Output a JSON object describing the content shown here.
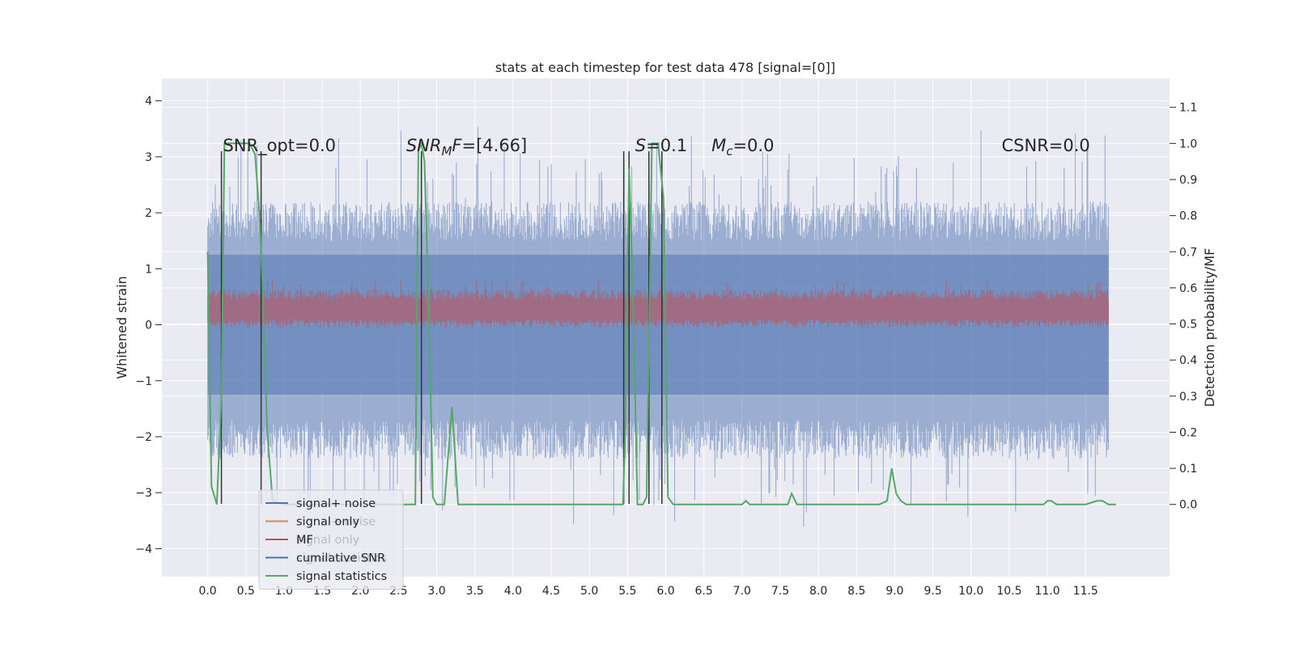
{
  "chart_data": {
    "type": "line",
    "title": "stats at each timestep for test data 478 [signal=[0]]",
    "ylabel_left": "Whitened strain",
    "ylabel_right": "Detection probability/MF",
    "xlim": [
      -0.6,
      12.6
    ],
    "ylim_left": [
      -4.5,
      4.4
    ],
    "ylim_right": [
      -0.2,
      1.18
    ],
    "xticks": [
      "0.0",
      "0.5",
      "1.0",
      "1.5",
      "2.0",
      "2.5",
      "3.0",
      "3.5",
      "4.0",
      "4.5",
      "5.0",
      "5.5",
      "6.0",
      "6.5",
      "7.0",
      "7.5",
      "8.0",
      "8.5",
      "9.0",
      "9.5",
      "10.0",
      "10.5",
      "11.0",
      "11.5"
    ],
    "yticks_left": [
      "−4",
      "−3",
      "−2",
      "−1",
      "0",
      "1",
      "2",
      "3",
      "4"
    ],
    "yticks_right": [
      "0.0",
      "0.1",
      "0.2",
      "0.3",
      "0.4",
      "0.5",
      "0.6",
      "0.7",
      "0.8",
      "0.9",
      "1.0",
      "1.1"
    ],
    "grid": true,
    "legend_placement": "lower-left",
    "background": "#eaeaf2",
    "colors": {
      "signal_noise": "#4c72b0",
      "signal_only": "#dd8452",
      "mf": "#c44e52",
      "cumulative_snr": "#4c72b0",
      "signal_statistics": "#55a868",
      "markers": "#333333"
    },
    "legend": [
      {
        "key": "signal_noise",
        "label": "signal+ noise"
      },
      {
        "key": "signal_only",
        "label": "signal only"
      },
      {
        "key": "mf",
        "label": "MF"
      },
      {
        "key": "cumulative_snr",
        "label": "cumilative SNR"
      },
      {
        "key": "signal_statistics",
        "label": "signal statistics"
      }
    ],
    "ghost_legend": [
      "signal+ noise",
      "signal only",
      "signal statistics"
    ],
    "annotations": [
      {
        "id": "snr-opt",
        "parts": [
          {
            "t": "SNR_opt=0.0"
          }
        ],
        "x": 0.2,
        "y": 3.1
      },
      {
        "id": "snr-mf",
        "parts": [
          {
            "t": "SNR",
            "i": true
          },
          {
            "t": "M",
            "i": true,
            "sub": true
          },
          {
            "t": "F",
            "i": true
          },
          {
            "t": "=[4.66]"
          }
        ],
        "x": 2.6,
        "y": 3.1
      },
      {
        "id": "s-value",
        "parts": [
          {
            "t": "S",
            "i": true
          },
          {
            "t": "=0.1"
          }
        ],
        "x": 5.6,
        "y": 3.1
      },
      {
        "id": "mc-value",
        "parts": [
          {
            "t": "M",
            "i": true
          },
          {
            "t": "c",
            "i": true,
            "sub": true
          },
          {
            "t": "=0.0"
          }
        ],
        "x": 6.6,
        "y": 3.1
      },
      {
        "id": "csnr",
        "parts": [
          {
            "t": "CSNR=0.0"
          }
        ],
        "x": 10.4,
        "y": 3.1
      }
    ],
    "noise_band": {
      "x_start": 0.0,
      "x_end": 11.8,
      "core_low": -1.25,
      "core_high": 1.25,
      "envelope": [
        -2.4,
        2.2
      ]
    },
    "mf_band": {
      "x_start": 0.0,
      "x_end": 11.8,
      "low": 0.1,
      "high": 0.45
    },
    "marker_lines_x": [
      0.18,
      0.7,
      2.8,
      5.45,
      5.52,
      5.78,
      5.95
    ],
    "marker_lines_y": [
      -3.2,
      3.1
    ],
    "signal_statistics": {
      "x": [
        0.0,
        0.05,
        0.12,
        0.18,
        0.22,
        0.28,
        0.35,
        0.45,
        0.55,
        0.62,
        0.68,
        0.72,
        0.78,
        0.85,
        1.0,
        1.5,
        2.0,
        2.5,
        2.72,
        2.76,
        2.8,
        2.84,
        2.9,
        2.95,
        3.0,
        3.1,
        3.2,
        3.28,
        3.35,
        3.5,
        4.0,
        4.5,
        5.0,
        5.44,
        5.47,
        5.52,
        5.57,
        5.63,
        5.7,
        5.75,
        5.82,
        5.9,
        5.97,
        6.03,
        6.1,
        6.2,
        6.5,
        7.0,
        7.05,
        7.1,
        7.5,
        7.6,
        7.65,
        7.72,
        7.8,
        8.0,
        8.5,
        8.8,
        8.9,
        8.96,
        9.02,
        9.08,
        9.15,
        9.3,
        9.5,
        10.0,
        10.5,
        10.95,
        11.0,
        11.05,
        11.12,
        11.2,
        11.5,
        11.65,
        11.72,
        11.8,
        11.9
      ],
      "y": [
        0.7,
        0.05,
        0.0,
        0.3,
        1.0,
        1.0,
        1.0,
        1.0,
        1.0,
        0.97,
        0.8,
        0.6,
        0.2,
        0.01,
        0.0,
        0.0,
        0.0,
        0.0,
        0.0,
        0.98,
        1.0,
        0.95,
        0.5,
        0.02,
        0.0,
        0.0,
        0.27,
        0.0,
        0.0,
        0.0,
        0.0,
        0.0,
        0.0,
        0.0,
        0.2,
        0.93,
        0.6,
        0.0,
        0.0,
        0.02,
        1.0,
        1.0,
        0.85,
        0.02,
        0.0,
        0.0,
        0.0,
        0.0,
        0.01,
        0.0,
        0.0,
        0.0,
        0.03,
        0.0,
        0.0,
        0.0,
        0.0,
        0.0,
        0.01,
        0.1,
        0.03,
        0.01,
        0.0,
        0.0,
        0.0,
        0.0,
        0.0,
        0.0,
        0.01,
        0.01,
        0.0,
        0.0,
        0.0,
        0.01,
        0.01,
        0.0,
        0.0
      ]
    }
  }
}
